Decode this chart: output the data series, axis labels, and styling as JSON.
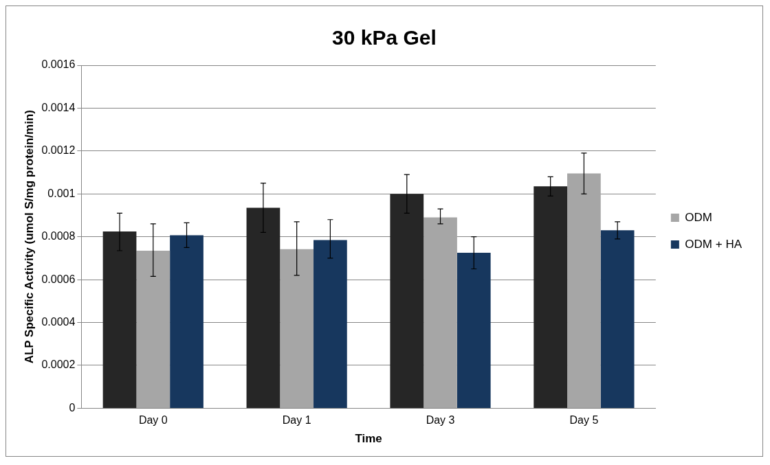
{
  "chart_data": {
    "type": "bar",
    "title": "30 kPa Gel",
    "xlabel": "Time",
    "ylabel": "ALP Specific Activity (umol S/mg protein/min)",
    "categories": [
      "Day 0",
      "Day 1",
      "Day 3",
      "Day 5"
    ],
    "series": [
      {
        "color": "#262626",
        "values": [
          0.000825,
          0.000935,
          0.001,
          0.001035
        ],
        "errors": [
          [
            0.000735,
            0.00091
          ],
          [
            0.00082,
            0.00105
          ],
          [
            0.00091,
            0.00109
          ],
          [
            0.00099,
            0.00108
          ]
        ]
      },
      {
        "name": "ODM",
        "color": "#a6a6a6",
        "values": [
          0.000735,
          0.000742,
          0.00089,
          0.001095
        ],
        "errors": [
          [
            0.000615,
            0.00086
          ],
          [
            0.00062,
            0.00087
          ],
          [
            0.00086,
            0.00093
          ],
          [
            0.001,
            0.00119
          ]
        ]
      },
      {
        "name": "ODM + HA",
        "color": "#17375e",
        "values": [
          0.000807,
          0.000785,
          0.000725,
          0.00083
        ],
        "errors": [
          [
            0.00075,
            0.000865
          ],
          [
            0.0007,
            0.00088
          ],
          [
            0.00065,
            0.0008
          ],
          [
            0.00079,
            0.00087
          ]
        ]
      }
    ],
    "ylim": [
      0,
      0.0016
    ],
    "yticks": [
      0,
      0.0002,
      0.0004,
      0.0006,
      0.0008,
      0.001,
      0.0012,
      0.0014,
      0.0016
    ],
    "grid": "y",
    "legend": "right"
  }
}
